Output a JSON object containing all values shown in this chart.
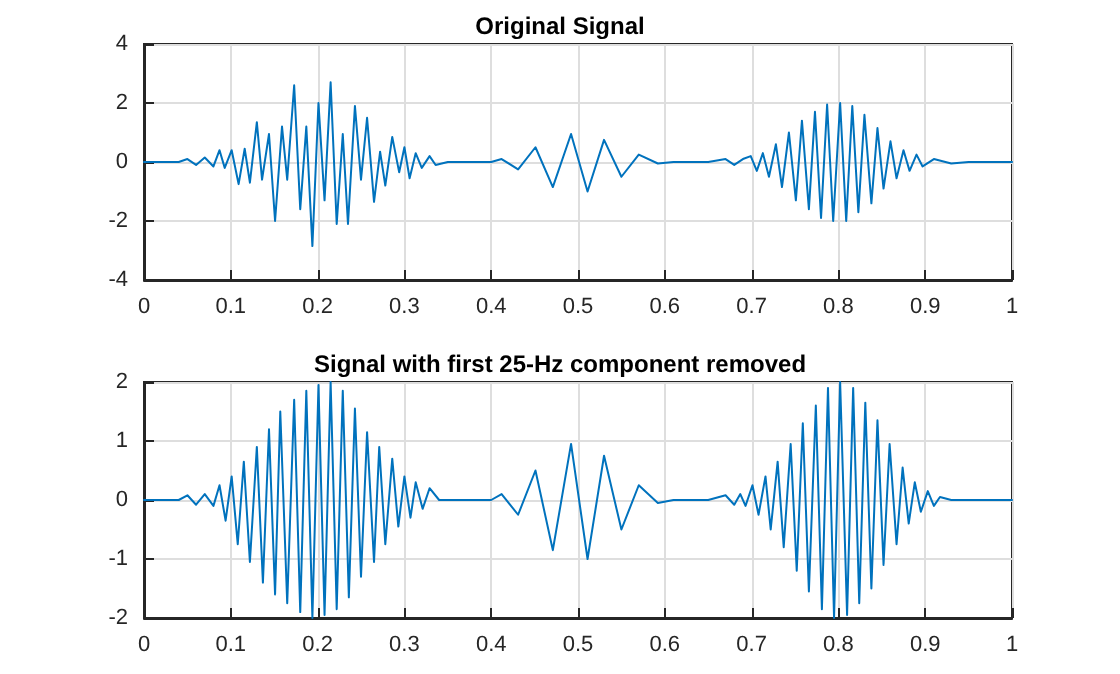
{
  "chart_data": [
    {
      "type": "line",
      "title": "Original Signal",
      "xlim": [
        0,
        1
      ],
      "ylim": [
        -4,
        4
      ],
      "xticks": [
        0,
        0.1,
        0.2,
        0.3,
        0.4,
        0.5,
        0.6,
        0.7,
        0.8,
        0.9,
        1
      ],
      "yticks": [
        -4,
        -2,
        0,
        2,
        4
      ],
      "grid": true,
      "marker": "none",
      "line_style": "solid",
      "series": [
        {
          "color": "#0072bd",
          "x": [
            0,
            0.04,
            0.05,
            0.06,
            0.07,
            0.08,
            0.087,
            0.093,
            0.101,
            0.109,
            0.116,
            0.122,
            0.13,
            0.136,
            0.144,
            0.151,
            0.159,
            0.165,
            0.173,
            0.18,
            0.187,
            0.194,
            0.201,
            0.208,
            0.215,
            0.222,
            0.229,
            0.235,
            0.243,
            0.25,
            0.257,
            0.265,
            0.272,
            0.278,
            0.286,
            0.294,
            0.3,
            0.306,
            0.313,
            0.32,
            0.329,
            0.336,
            0.35,
            0.4,
            0.412,
            0.431,
            0.451,
            0.471,
            0.492,
            0.511,
            0.53,
            0.55,
            0.57,
            0.592,
            0.61,
            0.65,
            0.67,
            0.68,
            0.69,
            0.699,
            0.706,
            0.713,
            0.72,
            0.728,
            0.735,
            0.743,
            0.751,
            0.758,
            0.766,
            0.773,
            0.78,
            0.787,
            0.794,
            0.802,
            0.809,
            0.816,
            0.823,
            0.83,
            0.838,
            0.845,
            0.852,
            0.86,
            0.867,
            0.875,
            0.882,
            0.89,
            0.897,
            0.91,
            0.93,
            0.95,
            1
          ],
          "values": [
            0,
            0,
            0.1,
            -0.1,
            0.15,
            -0.15,
            0.4,
            -0.2,
            0.4,
            -0.75,
            0.45,
            -0.7,
            1.35,
            -0.6,
            0.95,
            -2,
            1.2,
            -0.6,
            2.6,
            -1.6,
            1.2,
            -2.85,
            2,
            -1.3,
            2.7,
            -2.1,
            0.95,
            -2.1,
            1.9,
            -0.6,
            1.5,
            -1.35,
            0.35,
            -0.8,
            0.85,
            -0.35,
            0.5,
            -0.55,
            0.3,
            -0.2,
            0.2,
            -0.1,
            0,
            0,
            0.1,
            -0.25,
            0.5,
            -0.85,
            0.95,
            -1,
            0.75,
            -0.5,
            0.25,
            -0.05,
            0,
            0,
            0.1,
            -0.1,
            0.1,
            0.2,
            -0.3,
            0.3,
            -0.5,
            0.6,
            -0.85,
            1,
            -1.3,
            1.4,
            -1.6,
            1.7,
            -1.9,
            1.95,
            -2,
            2,
            -2,
            1.9,
            -1.7,
            1.6,
            -1.4,
            1.15,
            -0.9,
            0.7,
            -0.55,
            0.4,
            -0.3,
            0.25,
            -0.15,
            0.1,
            -0.05,
            0,
            0
          ]
        }
      ]
    },
    {
      "type": "line",
      "title": "Signal with first 25-Hz component removed",
      "xlim": [
        0,
        1
      ],
      "ylim": [
        -2,
        2
      ],
      "xticks": [
        0,
        0.1,
        0.2,
        0.3,
        0.4,
        0.5,
        0.6,
        0.7,
        0.8,
        0.9,
        1
      ],
      "yticks": [
        -2,
        -1,
        0,
        1,
        2
      ],
      "grid": true,
      "marker": "none",
      "line_style": "solid",
      "series": [
        {
          "color": "#0072bd",
          "x": [
            0,
            0.04,
            0.05,
            0.06,
            0.07,
            0.08,
            0.087,
            0.094,
            0.101,
            0.108,
            0.115,
            0.122,
            0.13,
            0.137,
            0.144,
            0.151,
            0.157,
            0.165,
            0.173,
            0.18,
            0.187,
            0.194,
            0.201,
            0.208,
            0.215,
            0.222,
            0.229,
            0.236,
            0.243,
            0.25,
            0.257,
            0.265,
            0.271,
            0.278,
            0.286,
            0.293,
            0.3,
            0.307,
            0.313,
            0.321,
            0.329,
            0.34,
            0.4,
            0.412,
            0.431,
            0.451,
            0.471,
            0.492,
            0.511,
            0.53,
            0.55,
            0.57,
            0.592,
            0.61,
            0.65,
            0.67,
            0.68,
            0.687,
            0.693,
            0.701,
            0.708,
            0.716,
            0.722,
            0.73,
            0.737,
            0.745,
            0.752,
            0.759,
            0.766,
            0.774,
            0.781,
            0.788,
            0.795,
            0.802,
            0.81,
            0.817,
            0.824,
            0.831,
            0.838,
            0.845,
            0.852,
            0.859,
            0.867,
            0.874,
            0.881,
            0.888,
            0.895,
            0.903,
            0.91,
            0.917,
            0.93,
            1
          ],
          "values": [
            0,
            0,
            0.08,
            -0.08,
            0.1,
            -0.1,
            0.25,
            -0.35,
            0.4,
            -0.75,
            0.65,
            -1.05,
            0.9,
            -1.4,
            1.2,
            -1.6,
            1.5,
            -1.75,
            1.7,
            -1.9,
            1.85,
            -2,
            1.95,
            -1.95,
            2,
            -1.85,
            1.85,
            -1.65,
            1.55,
            -1.3,
            1.15,
            -1.05,
            0.9,
            -0.75,
            0.7,
            -0.45,
            0.4,
            -0.3,
            0.3,
            -0.15,
            0.2,
            0,
            0,
            0.1,
            -0.25,
            0.5,
            -0.85,
            0.95,
            -1,
            0.75,
            -0.5,
            0.25,
            -0.05,
            0,
            0,
            0.08,
            -0.08,
            0.1,
            -0.1,
            0.25,
            -0.25,
            0.4,
            -0.5,
            0.65,
            -0.8,
            0.95,
            -1.2,
            1.3,
            -1.55,
            1.6,
            -1.85,
            1.9,
            -2,
            2,
            -1.95,
            1.9,
            -1.75,
            1.65,
            -1.5,
            1.35,
            -1.1,
            0.95,
            -0.75,
            0.55,
            -0.4,
            0.3,
            -0.2,
            0.15,
            -0.1,
            0.05,
            0,
            0
          ]
        }
      ]
    }
  ]
}
